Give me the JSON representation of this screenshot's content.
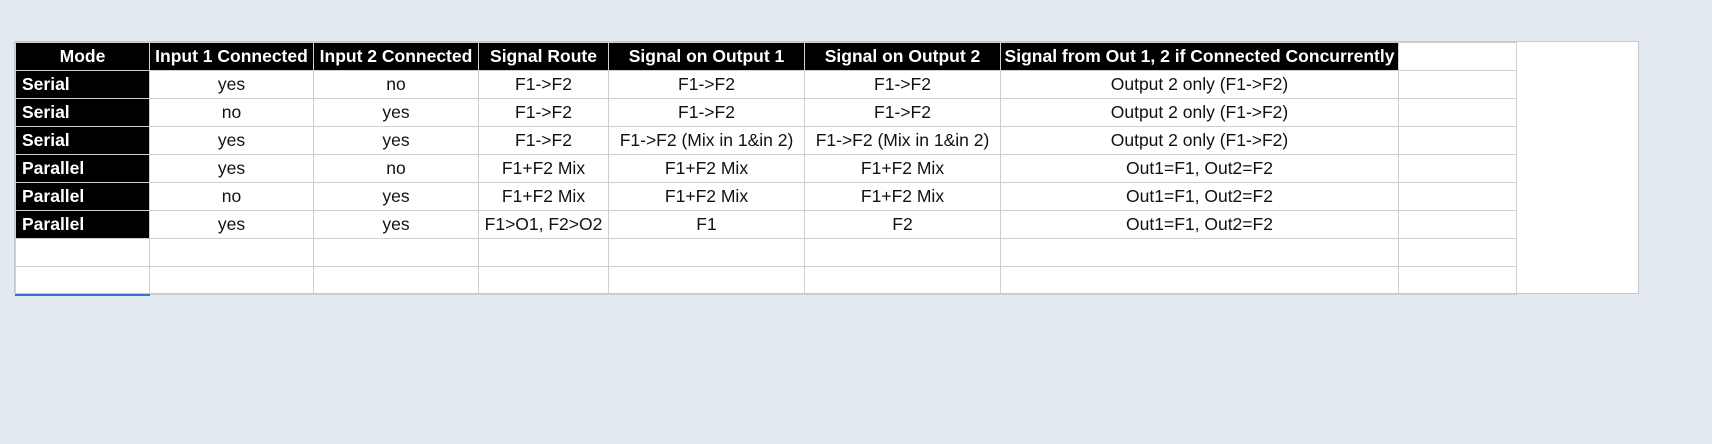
{
  "table": {
    "headers": [
      "Mode",
      "Input 1 Connected",
      "Input 2 Connected",
      "Signal Route",
      "Signal on Output 1",
      "Signal on Output 2",
      "Signal from Out 1, 2 if Connected Concurrently",
      ""
    ],
    "rows": [
      [
        "Serial",
        "yes",
        "no",
        "F1->F2",
        "F1->F2",
        "F1->F2",
        "Output 2 only (F1->F2)",
        ""
      ],
      [
        "Serial",
        "no",
        "yes",
        "F1->F2",
        "F1->F2",
        "F1->F2",
        "Output 2 only (F1->F2)",
        ""
      ],
      [
        "Serial",
        "yes",
        "yes",
        "F1->F2",
        "F1->F2 (Mix in 1&in 2)",
        "F1->F2 (Mix in 1&in 2)",
        "Output 2 only (F1->F2)",
        ""
      ],
      [
        "Parallel",
        "yes",
        "no",
        "F1+F2 Mix",
        "F1+F2 Mix",
        "F1+F2 Mix",
        "Out1=F1, Out2=F2",
        ""
      ],
      [
        "Parallel",
        "no",
        "yes",
        "F1+F2 Mix",
        "F1+F2 Mix",
        "F1+F2 Mix",
        "Out1=F1, Out2=F2",
        ""
      ],
      [
        "Parallel",
        "yes",
        "yes",
        "F1>O1, F2>O2",
        "F1",
        "F2",
        "Out1=F1, Out2=F2",
        ""
      ],
      [
        "",
        "",
        "",
        "",
        "",
        "",
        "",
        ""
      ],
      [
        "",
        "",
        "",
        "",
        "",
        "",
        "",
        ""
      ]
    ]
  },
  "colors": {
    "header_background": "#000000",
    "header_text": "#ffffff",
    "page_background": "#e3e9f1",
    "selection_accent": "#3a6fd4"
  }
}
